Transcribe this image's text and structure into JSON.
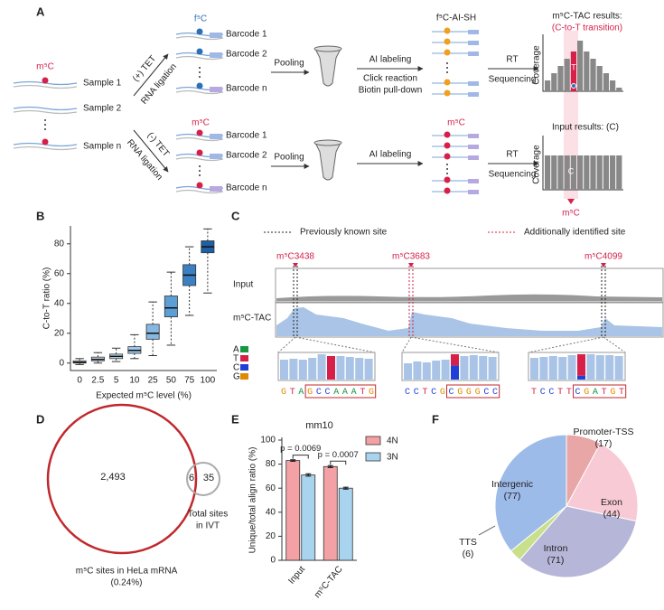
{
  "panel_labels": [
    "A",
    "B",
    "C",
    "D",
    "E",
    "F"
  ],
  "panel_a": {
    "mark": "m⁵C",
    "samples": [
      "Sample 1",
      "Sample 2",
      "Sample n"
    ],
    "top": {
      "mark": "f⁵C",
      "arrow": [
        "(+) TET",
        "RNA ligation"
      ],
      "barcodes": [
        "Barcode 1",
        "Barcode 2",
        "Barcode n"
      ],
      "pooling": "Pooling",
      "steps": [
        "AI labeling",
        "Click reaction",
        "Biotin pull-down"
      ],
      "product": "f⁵C-AI-SH",
      "sequencing": [
        "RT",
        "Sequencing"
      ],
      "result_title": "m⁵C-TAC results:",
      "result_subtitle": "(C-to-T transition)",
      "ylabel": "Coverage",
      "bar_label": "T"
    },
    "bottom": {
      "mark": "m⁵C",
      "arrow": [
        "(-) TET",
        "RNA ligation"
      ],
      "barcodes": [
        "Barcode 1",
        "Barcode 2",
        "Barcode n"
      ],
      "pooling": "Pooling",
      "steps": [
        "AI labeling"
      ],
      "product": "m⁵C",
      "sequencing": [
        "RT",
        "Sequencing"
      ],
      "result_title": "Input results: (C)",
      "ylabel": "Coverage",
      "bar_label": "C",
      "site": "m⁵C"
    }
  },
  "panel_c": {
    "legend": [
      "Previously known site",
      "Additionally identified site"
    ],
    "sites": [
      "m⁵C3438",
      "m⁵C3683",
      "m⁵C4099"
    ],
    "tracks": [
      "Input",
      "m⁵C-TAC"
    ],
    "bases": [
      "A",
      "T",
      "C",
      "G"
    ],
    "sequences": [
      "GTAGCCAAATG",
      "CCTCGCGGGCC",
      "TCCTTCGATGT"
    ]
  },
  "panel_d": {
    "counts": [
      "2,493",
      "6",
      "35"
    ],
    "ivt_label": [
      "Total sites",
      "in IVT"
    ],
    "hela_label": [
      "m⁵C sites in HeLa mRNA",
      "(0.24%)"
    ]
  },
  "chart_data": [
    {
      "type": "box",
      "xlabel": "Expected m⁵C level (%)",
      "ylabel": "C-to-T ratio (%)",
      "categories": [
        "0",
        "2.5",
        "5",
        "10",
        "25",
        "50",
        "75",
        "100"
      ],
      "boxes": [
        {
          "min": -1,
          "q1": 0,
          "median": 0.5,
          "q3": 1.5,
          "max": 3
        },
        {
          "min": 0,
          "q1": 1.5,
          "median": 2.5,
          "q3": 4,
          "max": 7
        },
        {
          "min": 1,
          "q1": 3,
          "median": 4.5,
          "q3": 6,
          "max": 10
        },
        {
          "min": 3,
          "q1": 6.5,
          "median": 8.5,
          "q3": 11,
          "max": 19
        },
        {
          "min": 5,
          "q1": 16,
          "median": 20,
          "q3": 26,
          "max": 41
        },
        {
          "min": 12,
          "q1": 31,
          "median": 37,
          "q3": 45,
          "max": 61
        },
        {
          "min": 32,
          "q1": 52,
          "median": 59,
          "q3": 66,
          "max": 78
        },
        {
          "min": 47,
          "q1": 74,
          "median": 78,
          "q3": 82,
          "max": 90
        }
      ],
      "colors": [
        "#dde9f5",
        "#cde0f2",
        "#badaf0",
        "#9fc8ea",
        "#86b8e2",
        "#5c9fd5",
        "#3b80c2",
        "#1f5fa3"
      ],
      "ylim": [
        -5,
        92
      ],
      "yticks": [
        0,
        20,
        40,
        60,
        80
      ]
    },
    {
      "type": "bar",
      "title": "mm10",
      "ylabel": "Unique/total align ratio (%)",
      "categories": [
        "Input",
        "m⁵C-TAC"
      ],
      "series": [
        {
          "name": "4N",
          "color": "#f4a1a6",
          "values": [
            83,
            78
          ],
          "errors": [
            0.6,
            0.8
          ]
        },
        {
          "name": "3N",
          "color": "#a9d4ef",
          "values": [
            71,
            60
          ],
          "errors": [
            1,
            0.8
          ]
        }
      ],
      "annotations": [
        "p = 0.0069",
        "p = 0.0007"
      ],
      "ylim": [
        0,
        100
      ],
      "yticks": [
        0,
        20,
        40,
        60,
        80,
        100
      ]
    },
    {
      "type": "pie",
      "categories": [
        "Promoter-TSS",
        "Exon",
        "Intron",
        "TTS",
        "Intergenic"
      ],
      "values": [
        17,
        44,
        71,
        6,
        77
      ],
      "value_labels": [
        "(17)",
        "(44)",
        "(71)",
        "(6)",
        "(77)"
      ],
      "colors": [
        "#e8a6a6",
        "#f8cad5",
        "#b6b6d9",
        "#c8df8c",
        "#9dbbe9"
      ]
    }
  ]
}
